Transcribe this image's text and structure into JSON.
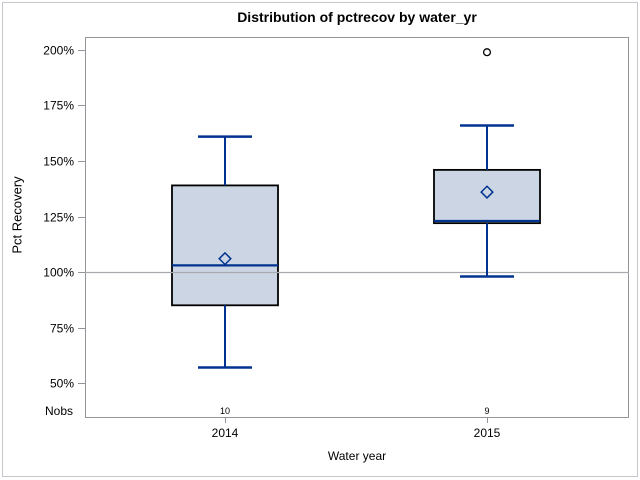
{
  "labels": {
    "nobs": "Nobs"
  },
  "colors": {
    "box_fill": "#ccd5e4",
    "box_border": "#000000",
    "line_blue": "#00338f",
    "frame_gray": "#919599",
    "ref_line_gray": "#a6a9ad",
    "outer_border": "#c3c7cb",
    "outlier_stroke": "#000000",
    "text": "#000000"
  },
  "chart_data": {
    "type": "boxplot",
    "title": "Distribution of pctrecov by water_yr",
    "xlabel": "Water year",
    "ylabel": "Pct Recovery",
    "y_tick_values": [
      200,
      175,
      150,
      125,
      100,
      75,
      50
    ],
    "y_tick_suffix": "%",
    "ylim": [
      34,
      206
    ],
    "reference_line": 100,
    "grid": "off",
    "legend": "none",
    "categories": [
      "2014",
      "2015"
    ],
    "groups": [
      {
        "category": "2014",
        "nobs": 10,
        "whisker_low": 57,
        "q1": 85,
        "median": 103,
        "q3": 139,
        "whisker_high": 161,
        "mean": 106,
        "outliers": []
      },
      {
        "category": "2015",
        "nobs": 9,
        "whisker_low": 98,
        "q1": 122,
        "median": 123,
        "q3": 146,
        "whisker_high": 166,
        "mean": 136,
        "outliers": [
          199
        ]
      }
    ]
  }
}
